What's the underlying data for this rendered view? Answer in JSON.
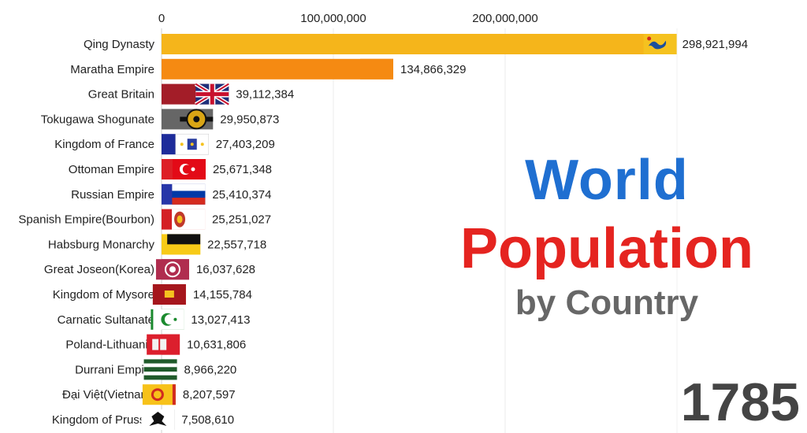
{
  "title": {
    "line1": "World",
    "line2": "Population",
    "subtitle": "by Country",
    "year": "1785",
    "colors": {
      "line1": "#1f6fd1",
      "line2": "#e52420",
      "subtitle": "#676767",
      "year": "#444444"
    }
  },
  "chart_data": {
    "type": "bar",
    "orientation": "horizontal",
    "title": "World Population",
    "subtitle": "by Country",
    "year": "1785",
    "xlabel": "",
    "ylabel": "",
    "xlim": [
      0,
      300000000
    ],
    "ticks": [
      0,
      100000000,
      200000000
    ],
    "tick_labels": [
      "0",
      "100,000,000",
      "200,000,000"
    ],
    "grid": true,
    "categories": [
      "Qing Dynasty",
      "Maratha Empire",
      "Great Britain",
      "Tokugawa Shogunate",
      "Kingdom of France",
      "Ottoman Empire",
      "Russian Empire",
      "Spanish Empire(Bourbon)",
      "Habsburg Monarchy",
      "Great Joseon(Korea)",
      "Kingdom of Mysore",
      "Carnatic Sultanate",
      "Poland-Lithuania",
      "Durrani Empire",
      "Đại Việt(Vietnam)",
      "Kingdom of Prussia"
    ],
    "values": [
      298921994,
      134866329,
      39112384,
      29950873,
      27403209,
      25671348,
      25410374,
      25251027,
      22557718,
      16037628,
      14155784,
      13027413,
      10631806,
      8966220,
      8207597,
      7508610
    ],
    "value_labels": [
      "298,921,994",
      "134,866,329",
      "39,112,384",
      "29,950,873",
      "27,403,209",
      "25,671,348",
      "25,410,374",
      "25,251,027",
      "22,557,718",
      "16,037,628",
      "14,155,784",
      "13,027,413",
      "10,631,806",
      "8,966,220",
      "8,207,597",
      "7,508,610"
    ],
    "colors": [
      "#f5b51b",
      "#f58a12",
      "#a31d28",
      "#666666",
      "#1d2b9a",
      "#dd1f26",
      "#2736a8",
      "#d42025",
      "#f7ca18",
      "#a42a46",
      "#e8201c",
      "#1b8a2e",
      "#dc1f2d",
      "#1f5a2a",
      "#f7c21a",
      "#616161"
    ],
    "flags": [
      "qing-dragon-flag",
      "maratha-flag",
      "union-jack-flag",
      "tokugawa-mon-flag",
      "bourbon-royal-flag",
      "ottoman-crescent-flag",
      "russian-tricolor-flag",
      "spanish-bourbon-arms-flag",
      "habsburg-flag",
      "joseon-flag",
      "mysore-flag",
      "carnatic-crescent-flag",
      "poland-lithuania-flag",
      "durrani-flag",
      "dai-viet-flag",
      "prussia-eagle-flag"
    ]
  }
}
